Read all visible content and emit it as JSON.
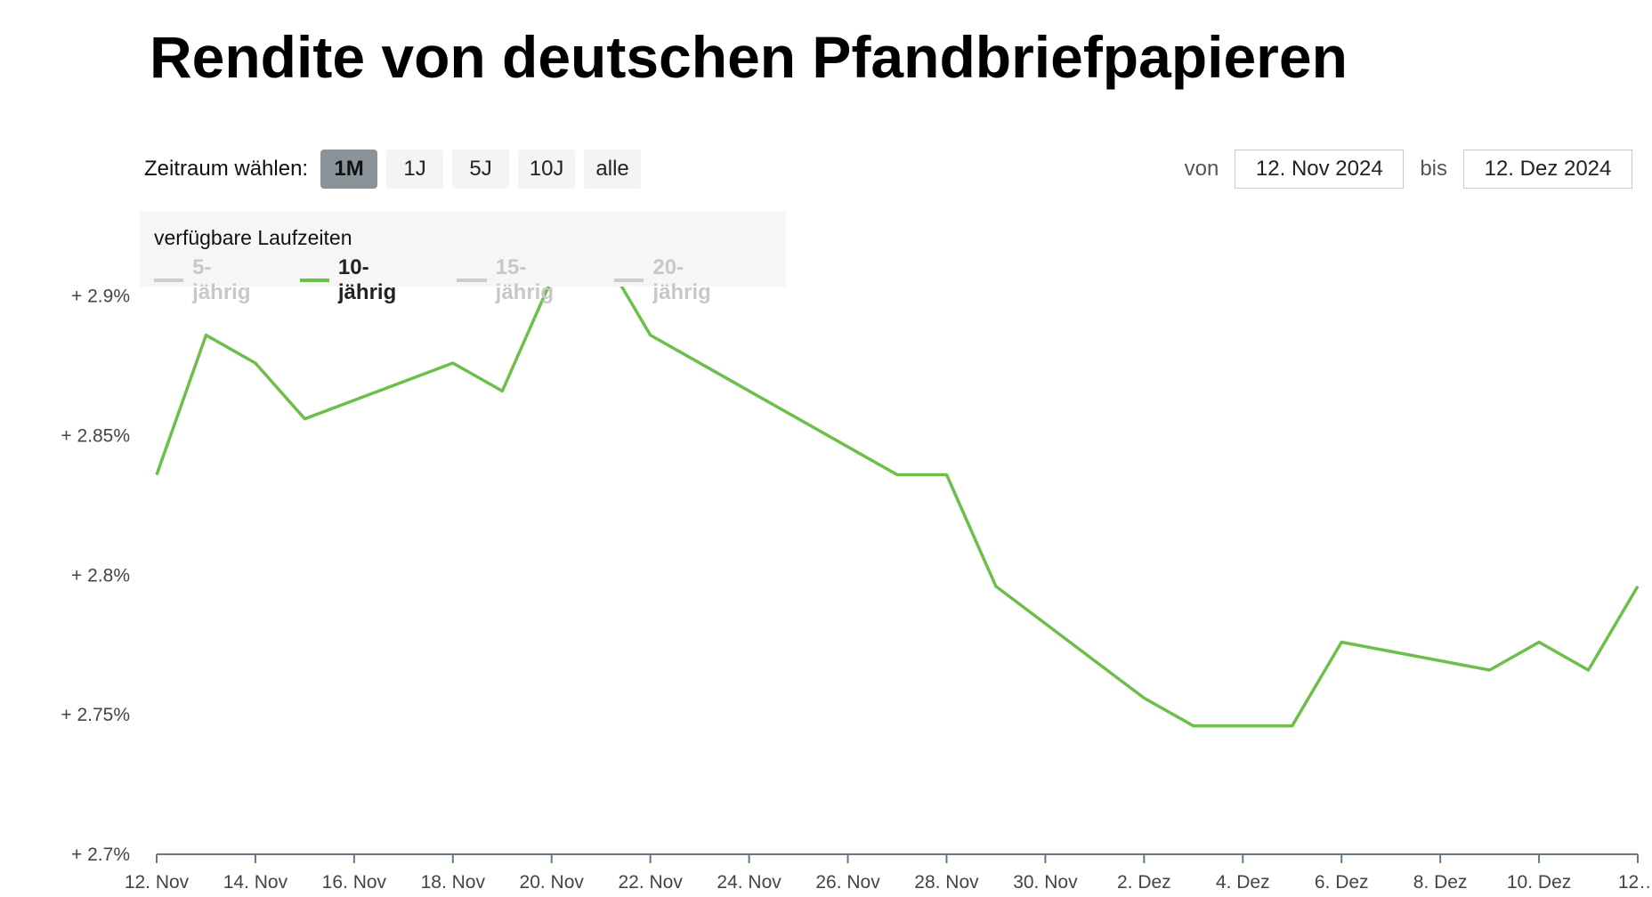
{
  "title": "Rendite von deutschen Pfandbriefpapieren",
  "range_selector": {
    "label": "Zeitraum wählen:",
    "buttons": [
      {
        "label": "1M",
        "active": true
      },
      {
        "label": "1J",
        "active": false
      },
      {
        "label": "5J",
        "active": false
      },
      {
        "label": "10J",
        "active": false
      },
      {
        "label": "alle",
        "active": false
      }
    ]
  },
  "date_range": {
    "from_label": "von",
    "from_value": "12. Nov 2024",
    "to_label": "bis",
    "to_value": "12. Dez 2024"
  },
  "legend": {
    "title": "verfügbare Laufzeiten",
    "items": [
      {
        "label": "5-jährig",
        "active": false
      },
      {
        "label": "10-jährig",
        "active": true
      },
      {
        "label": "15-jährig",
        "active": false
      },
      {
        "label": "20-jährig",
        "active": false
      }
    ]
  },
  "colors": {
    "series": "#6cc04a",
    "inactive": "#cccccc",
    "axis": "#6b7780",
    "active_button": "#8a9399"
  },
  "chart_data": {
    "type": "line",
    "title": "",
    "xlabel": "",
    "ylabel": "",
    "x_range": [
      "2024-11-12",
      "2024-12-12"
    ],
    "ylim": [
      2.7,
      2.92
    ],
    "y_ticks": [
      2.7,
      2.75,
      2.8,
      2.85,
      2.9
    ],
    "y_tick_labels": [
      "+ 2.7%",
      "+ 2.75%",
      "+ 2.8%",
      "+ 2.85%",
      "+ 2.9%"
    ],
    "x_ticks": [
      "2024-11-12",
      "2024-11-14",
      "2024-11-16",
      "2024-11-18",
      "2024-11-20",
      "2024-11-22",
      "2024-11-24",
      "2024-11-26",
      "2024-11-28",
      "2024-11-30",
      "2024-12-02",
      "2024-12-04",
      "2024-12-06",
      "2024-12-08",
      "2024-12-10",
      "2024-12-12"
    ],
    "x_tick_labels": [
      "12. Nov",
      "14. Nov",
      "16. Nov",
      "18. Nov",
      "20. Nov",
      "22. Nov",
      "24. Nov",
      "26. Nov",
      "28. Nov",
      "30. Nov",
      "2. Dez",
      "4. Dez",
      "6. Dez",
      "8. Dez",
      "10. Dez",
      "12…"
    ],
    "grid": false,
    "legend_position": "top-left",
    "series": [
      {
        "name": "10-jährig",
        "x": [
          "2024-11-12",
          "2024-11-13",
          "2024-11-14",
          "2024-11-15",
          "2024-11-18",
          "2024-11-19",
          "2024-11-20",
          "2024-11-21",
          "2024-11-22",
          "2024-11-27",
          "2024-11-28",
          "2024-11-29",
          "2024-12-02",
          "2024-12-03",
          "2024-12-04",
          "2024-12-05",
          "2024-12-06",
          "2024-12-09",
          "2024-12-10",
          "2024-12-11",
          "2024-12-12"
        ],
        "y": [
          2.836,
          2.886,
          2.876,
          2.856,
          2.876,
          2.866,
          2.906,
          2.916,
          2.886,
          2.836,
          2.836,
          2.796,
          2.756,
          2.746,
          2.746,
          2.746,
          2.776,
          2.766,
          2.776,
          2.766,
          2.796
        ]
      }
    ]
  }
}
